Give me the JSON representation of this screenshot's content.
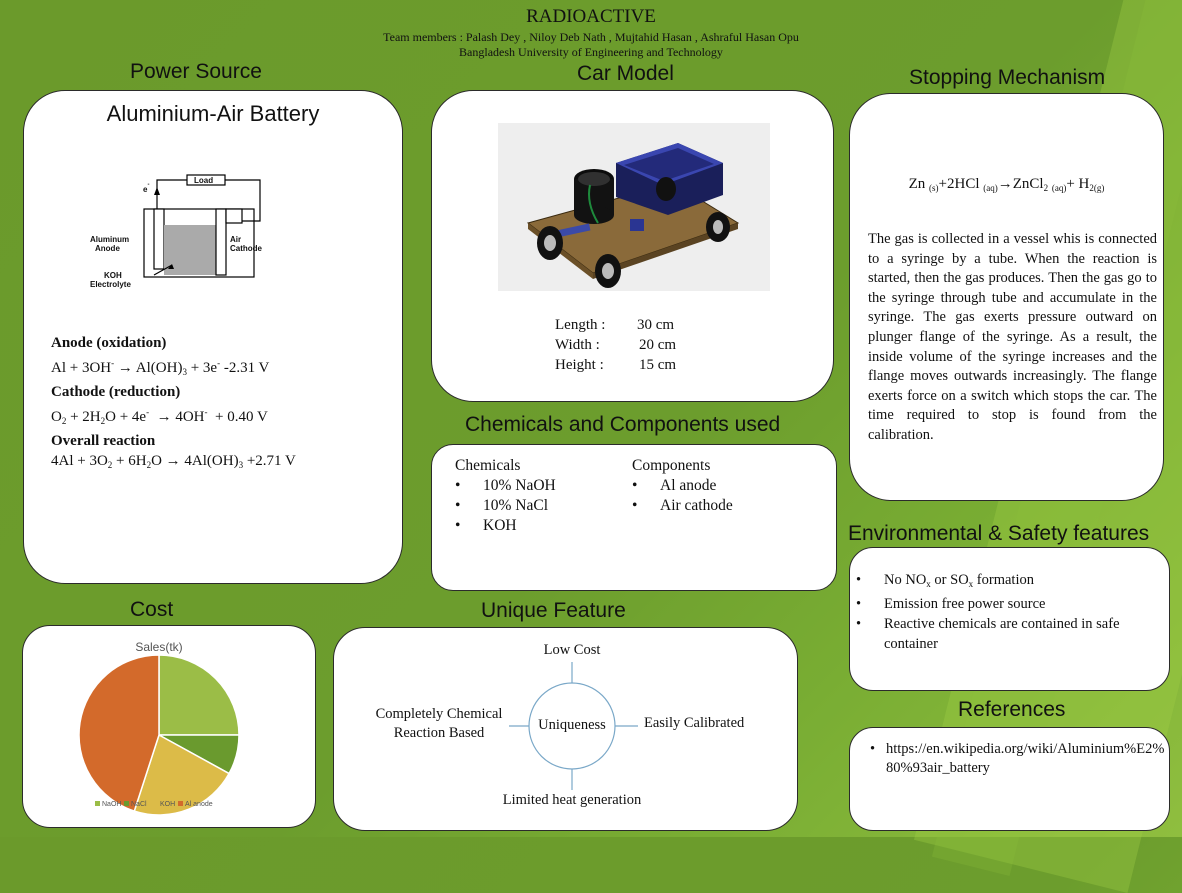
{
  "header": {
    "title": "RADIOACTIVE",
    "team": "Team members : Palash Dey , Niloy Deb Nath , Mujtahid Hasan , Ashraful Hasan Opu",
    "university": "Bangladesh University of Engineering and Technology"
  },
  "power": {
    "section_title": "Power Source",
    "panel_title": "Aluminium-Air Battery",
    "diagram": {
      "load": "Load",
      "electron": "e",
      "anode_label": [
        "Aluminum",
        "Anode"
      ],
      "cathode_label": [
        "Air",
        "Cathode"
      ],
      "electrolyte_label": [
        "KOH",
        "Electrolyte"
      ]
    },
    "anode_heading": "Anode (oxidation)",
    "cathode_heading": "Cathode (reduction)",
    "overall_heading": "Overall reaction"
  },
  "car": {
    "section_title": "Car Model",
    "dims": [
      {
        "label": "Length :",
        "value": "30 cm"
      },
      {
        "label": "Width  :",
        "value": "20 cm"
      },
      {
        "label": "Height  :",
        "value": "15 cm"
      }
    ]
  },
  "stopping": {
    "section_title": "Stopping Mechanism",
    "paragraph": "The gas is collected in a vessel whis is connected to a syringe by a tube. When the reaction is started, then the gas produces. Then the gas go to the syringe through tube and accumulate in the syringe. The gas exerts pressure outward on plunger flange of the syringe. As a result, the inside volume of the syringe increases and the flange moves outwards increasingly. The flange exerts force on a switch which stops the car. The time required to stop is found from the calibration."
  },
  "chemicals": {
    "section_title": "Chemicals and Components used",
    "chem_heading": "Chemicals",
    "chem_items": [
      "10% NaOH",
      "10% NaCl",
      "KOH"
    ],
    "comp_heading": "Components",
    "comp_items": [
      "Al anode",
      "Air cathode"
    ]
  },
  "environment": {
    "section_title": "Environmental & Safety features",
    "item2": "Emission free power source",
    "item3": "Reactive chemicals are contained in safe container"
  },
  "cost": {
    "section_title": "Cost"
  },
  "chart_data": {
    "type": "pie",
    "title": "Sales(tk)",
    "categories": [
      "NaOH",
      "NaCl",
      "KOH",
      "Al anode"
    ],
    "values": [
      25,
      8,
      22,
      45
    ],
    "colors": [
      "#9bbd47",
      "#6a9a2e",
      "#dcbb48",
      "#d36a2b"
    ],
    "legend_position": "bottom"
  },
  "unique": {
    "section_title": "Unique Feature",
    "center": "Uniqueness",
    "top": "Low Cost",
    "right": "Easily Calibrated",
    "bottom": "Limited heat generation",
    "left": [
      "Completely Chemical",
      "Reaction Based"
    ]
  },
  "references": {
    "section_title": "References",
    "items": [
      "https://en.wikipedia.org/wiki/Aluminium%E2%80%93air_battery"
    ]
  }
}
